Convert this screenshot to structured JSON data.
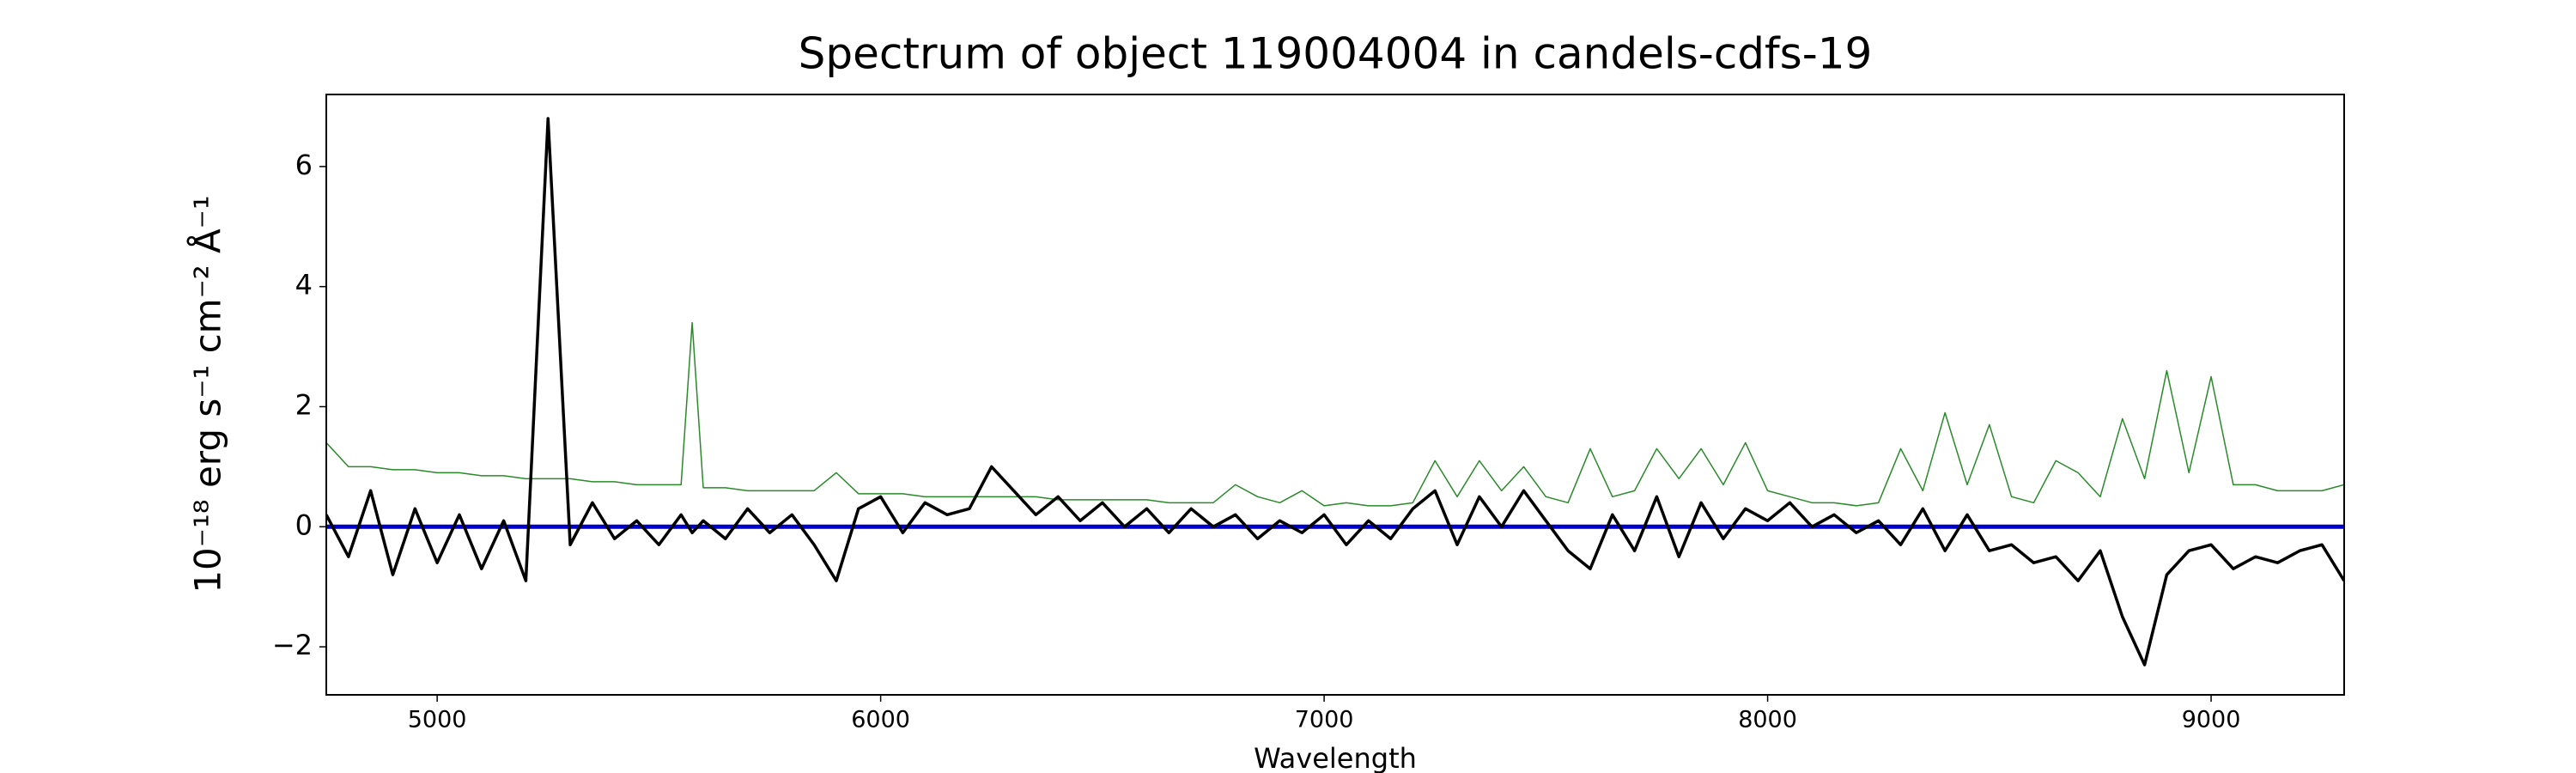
{
  "chart_data": {
    "type": "line",
    "title": "Spectrum of object 119004004 in candels-cdfs-19",
    "x_label": "Wavelength",
    "y_label": "10⁻¹⁸ erg s⁻¹ cm⁻² Å⁻¹",
    "xlim": [
      4750,
      9300
    ],
    "ylim": [
      -2.8,
      7.2
    ],
    "xticks": [
      5000,
      6000,
      7000,
      8000,
      9000
    ],
    "yticks": [
      -2,
      0,
      2,
      4,
      6
    ],
    "grid": false,
    "x": [
      4750,
      4800,
      4850,
      4900,
      4950,
      5000,
      5050,
      5100,
      5150,
      5200,
      5250,
      5300,
      5350,
      5400,
      5450,
      5500,
      5550,
      5575,
      5600,
      5650,
      5700,
      5750,
      5800,
      5850,
      5900,
      5950,
      6000,
      6050,
      6100,
      6150,
      6200,
      6250,
      6300,
      6350,
      6400,
      6450,
      6500,
      6550,
      6600,
      6650,
      6700,
      6750,
      6800,
      6850,
      6900,
      6950,
      7000,
      7050,
      7100,
      7150,
      7200,
      7250,
      7300,
      7350,
      7400,
      7450,
      7500,
      7550,
      7600,
      7650,
      7700,
      7750,
      7800,
      7850,
      7900,
      7950,
      8000,
      8050,
      8100,
      8150,
      8200,
      8250,
      8300,
      8350,
      8400,
      8450,
      8500,
      8550,
      8600,
      8650,
      8700,
      8750,
      8800,
      8850,
      8900,
      8950,
      9000,
      9050,
      9100,
      9150,
      9200,
      9250,
      9300
    ],
    "series": [
      {
        "color": "#2a8a2a",
        "width": 1.5,
        "values": [
          1.4,
          1.0,
          1.0,
          0.95,
          0.95,
          0.9,
          0.9,
          0.85,
          0.85,
          0.8,
          0.8,
          0.8,
          0.75,
          0.75,
          0.7,
          0.7,
          0.7,
          3.4,
          0.65,
          0.65,
          0.6,
          0.6,
          0.6,
          0.6,
          0.9,
          0.55,
          0.55,
          0.55,
          0.5,
          0.5,
          0.5,
          0.5,
          0.5,
          0.5,
          0.45,
          0.45,
          0.45,
          0.45,
          0.45,
          0.4,
          0.4,
          0.4,
          0.7,
          0.5,
          0.4,
          0.6,
          0.35,
          0.4,
          0.35,
          0.35,
          0.4,
          1.1,
          0.5,
          1.1,
          0.6,
          1.0,
          0.5,
          0.4,
          1.3,
          0.5,
          0.6,
          1.3,
          0.8,
          1.3,
          0.7,
          1.4,
          0.6,
          0.5,
          0.4,
          0.4,
          0.35,
          0.4,
          1.3,
          0.6,
          1.9,
          0.7,
          1.7,
          0.5,
          0.4,
          1.1,
          0.9,
          0.5,
          1.8,
          0.8,
          2.6,
          0.9,
          2.5,
          0.7,
          0.7,
          0.6,
          0.6,
          0.6,
          0.7
        ]
      },
      {
        "color": "#0000cc",
        "width": 5,
        "x": [
          4750,
          9300
        ],
        "values": [
          0,
          0
        ]
      },
      {
        "color": "#000000",
        "width": 3.5,
        "values": [
          0.2,
          -0.5,
          0.6,
          -0.8,
          0.3,
          -0.6,
          0.2,
          -0.7,
          0.1,
          -0.9,
          6.8,
          -0.3,
          0.4,
          -0.2,
          0.1,
          -0.3,
          0.2,
          -0.1,
          0.1,
          -0.2,
          0.3,
          -0.1,
          0.2,
          -0.3,
          -0.9,
          0.3,
          0.5,
          -0.1,
          0.4,
          0.2,
          0.3,
          1.0,
          0.6,
          0.2,
          0.5,
          0.1,
          0.4,
          0.0,
          0.3,
          -0.1,
          0.3,
          0.0,
          0.2,
          -0.2,
          0.1,
          -0.1,
          0.2,
          -0.3,
          0.1,
          -0.2,
          0.3,
          0.6,
          -0.3,
          0.5,
          0.0,
          0.6,
          0.1,
          -0.4,
          -0.7,
          0.2,
          -0.4,
          0.5,
          -0.5,
          0.4,
          -0.2,
          0.3,
          0.1,
          0.4,
          0.0,
          0.2,
          -0.1,
          0.1,
          -0.3,
          0.3,
          -0.4,
          0.2,
          -0.4,
          -0.3,
          -0.6,
          -0.5,
          -0.9,
          -0.4,
          -1.5,
          -2.3,
          -0.8,
          -0.4,
          -0.3,
          -0.7,
          -0.5,
          -0.6,
          -0.4,
          -0.3,
          -0.9
        ]
      }
    ]
  }
}
